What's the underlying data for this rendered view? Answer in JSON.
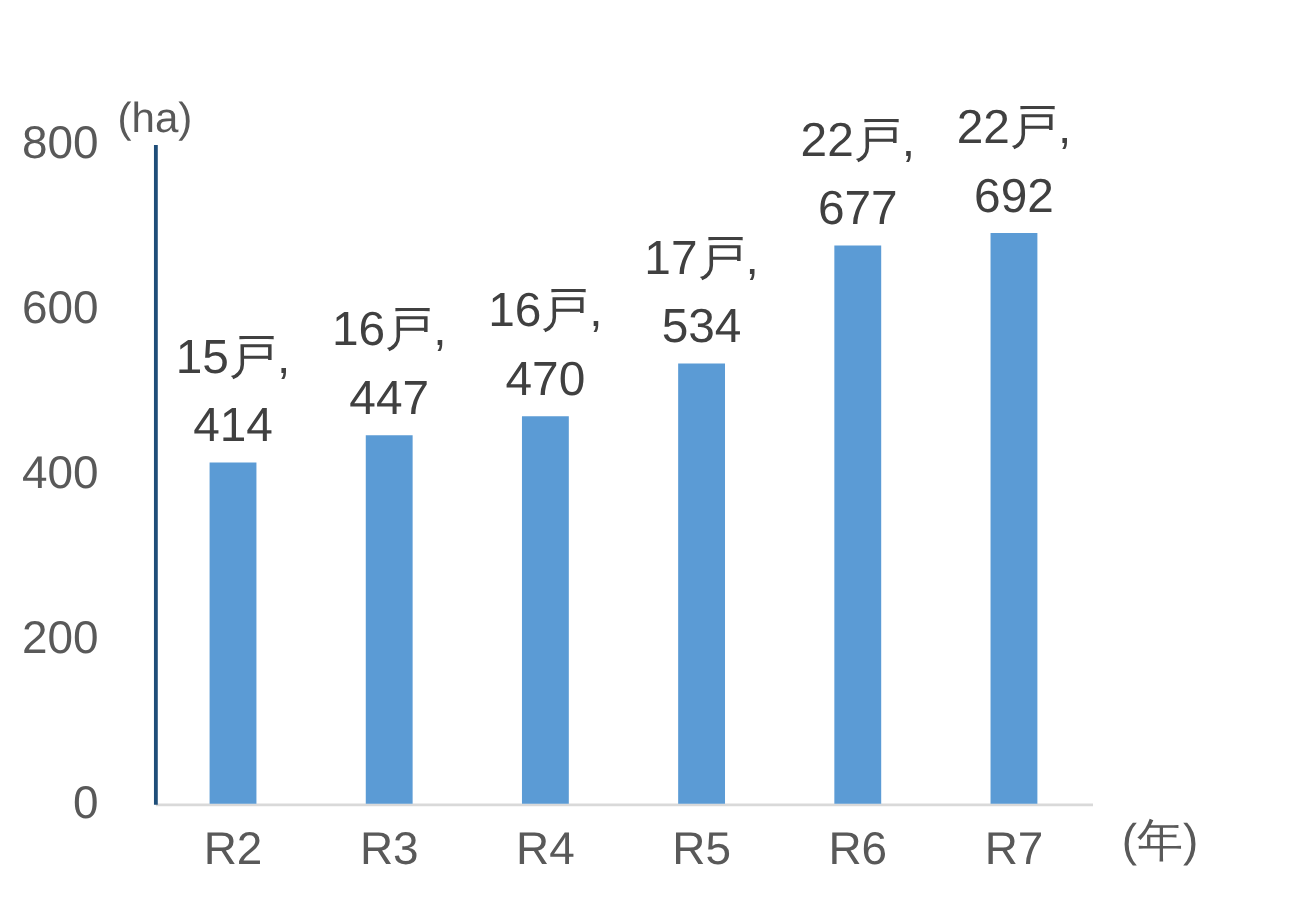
{
  "chart_data": {
    "type": "bar",
    "xlabel": "(年)",
    "ylabel": "(ha)",
    "categories": [
      "R2",
      "R3",
      "R4",
      "R5",
      "R6",
      "R7"
    ],
    "values": [
      414,
      447,
      470,
      534,
      677,
      692
    ],
    "value_labels": [
      "15戸,414",
      "16戸,447",
      "16戸,470",
      "17戸,534",
      "22戸,677",
      "22戸,692"
    ],
    "color": "#5b9bd5",
    "ylim": [
      0,
      800
    ],
    "yticks": [
      0,
      200,
      400,
      600,
      800
    ],
    "grid": false
  }
}
